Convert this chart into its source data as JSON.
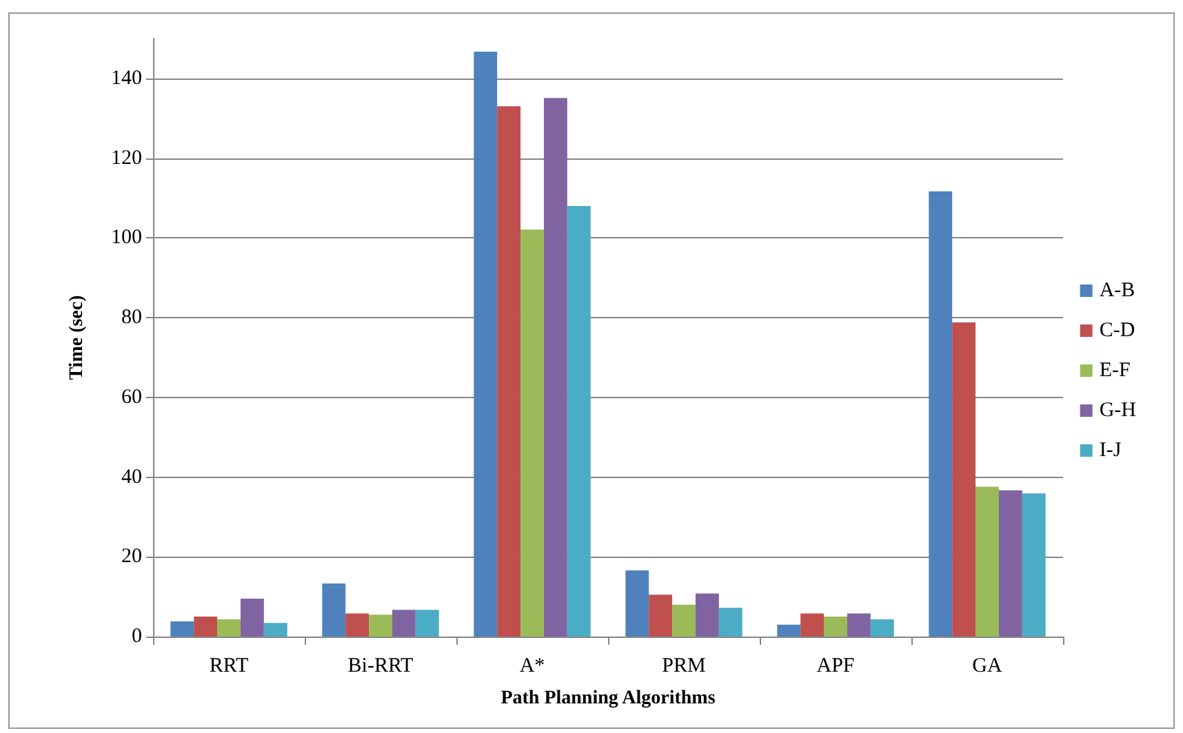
{
  "chart_data": {
    "type": "bar",
    "xlabel": "Path Planning Algorithms",
    "ylabel": "Time (sec)",
    "categories": [
      "RRT",
      "Bi-RRT",
      "A*",
      "PRM",
      "APF",
      "GA"
    ],
    "series": [
      {
        "name": "A-B",
        "color": "#4f81bd",
        "values": [
          3.8,
          13.3,
          146.7,
          16.6,
          3,
          111.7
        ]
      },
      {
        "name": "C-D",
        "color": "#c0504d",
        "values": [
          5,
          5.8,
          133,
          10.5,
          5.8,
          78.8
        ]
      },
      {
        "name": "E-F",
        "color": "#9bbb59",
        "values": [
          4.3,
          5.5,
          102.1,
          8,
          5,
          37.6
        ]
      },
      {
        "name": "G-H",
        "color": "#8064a2",
        "values": [
          9.5,
          6.7,
          135.1,
          10.8,
          5.8,
          36.7
        ]
      },
      {
        "name": "I-J",
        "color": "#4bacc6",
        "values": [
          3.4,
          6.7,
          108,
          7.2,
          4.3,
          35.9
        ]
      }
    ],
    "ylim": [
      0,
      150
    ],
    "yticks": [
      0,
      20,
      40,
      60,
      80,
      100,
      120,
      140
    ],
    "grid": "y",
    "legend": "right"
  }
}
